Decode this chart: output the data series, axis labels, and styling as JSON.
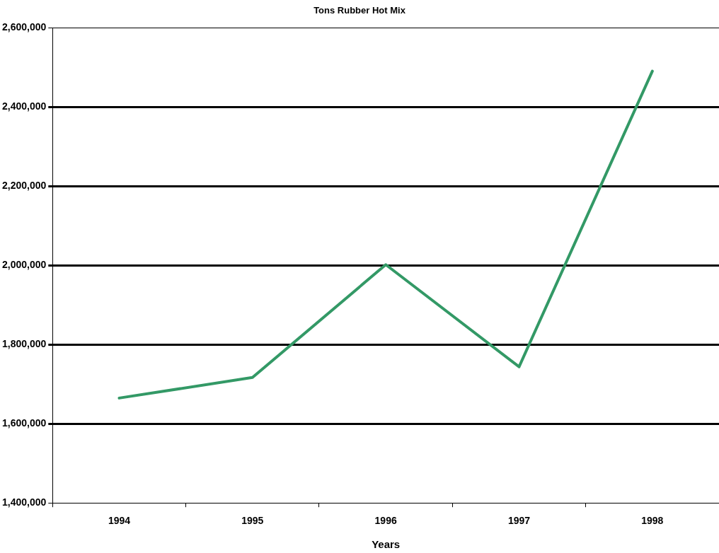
{
  "chart_data": {
    "type": "line",
    "title": "Tons Rubber Hot Mix",
    "xlabel": "Years",
    "categories": [
      "1994",
      "1995",
      "1996",
      "1997",
      "1998"
    ],
    "series": [
      {
        "color": "#339966",
        "values": [
          1665000,
          1717000,
          2002000,
          1744000,
          2491000
        ]
      }
    ],
    "ylim": [
      1400000,
      2600000
    ],
    "yticks": [
      {
        "value": 1400000,
        "label": "1,400,000"
      },
      {
        "value": 1600000,
        "label": "1,600,000"
      },
      {
        "value": 1800000,
        "label": "1,800,000"
      },
      {
        "value": 2000000,
        "label": "2,000,000"
      },
      {
        "value": 2200000,
        "label": "2,200,000"
      },
      {
        "value": 2400000,
        "label": "2,400,000"
      },
      {
        "value": 2600000,
        "label": "2,600,000"
      }
    ],
    "grid": "y",
    "legend": false,
    "marker": "none",
    "line_style": "solid"
  }
}
